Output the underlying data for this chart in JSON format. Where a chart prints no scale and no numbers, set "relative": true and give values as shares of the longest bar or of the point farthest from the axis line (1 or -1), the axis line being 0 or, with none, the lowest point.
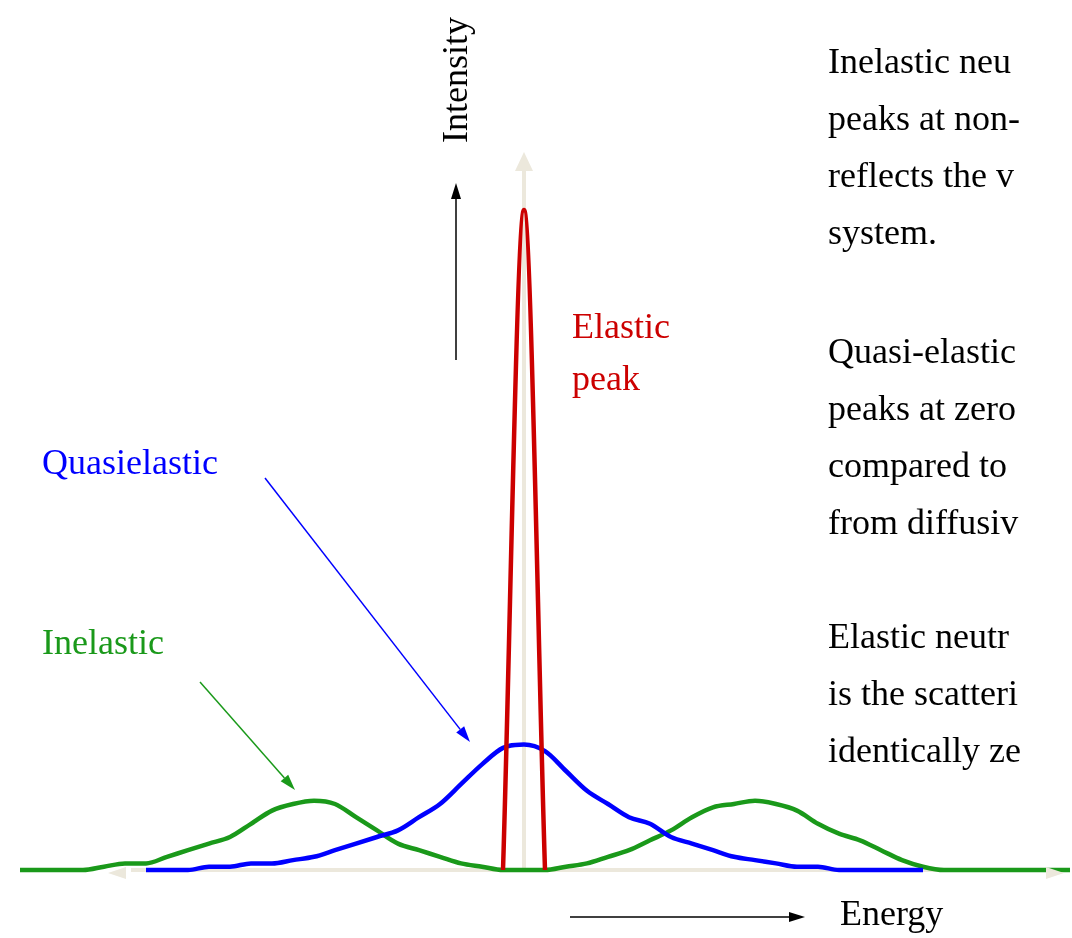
{
  "chart_data": {
    "type": "line",
    "relative": true,
    "xlabel": "Energy",
    "ylabel": "Intensity",
    "categories": [
      null,
      null,
      null,
      null,
      null,
      null,
      null,
      null,
      null,
      null,
      null,
      null,
      null,
      null,
      null,
      null,
      null,
      null,
      null,
      null,
      null,
      null,
      null,
      null,
      null,
      null,
      null,
      null,
      null,
      null,
      null,
      null,
      null,
      null,
      null,
      null,
      null,
      null,
      null,
      null,
      null,
      null,
      null,
      null,
      null,
      null,
      null,
      null,
      null,
      null,
      null
    ],
    "series": [
      {
        "name": "Elastic peak",
        "color": "#cc0000",
        "values": [
          null,
          null,
          null,
          null,
          null,
          null,
          null,
          null,
          null,
          null,
          null,
          null,
          null,
          null,
          null,
          null,
          null,
          null,
          null,
          null,
          null,
          null,
          null,
          0,
          1,
          0,
          null,
          null,
          null,
          null,
          null,
          null,
          null,
          null,
          null,
          null,
          null,
          null,
          null,
          null,
          null,
          null,
          null,
          null,
          null,
          null,
          null,
          null,
          null,
          null,
          null
        ]
      },
      {
        "name": "Quasielastic",
        "color": "#0000ff",
        "values": [
          null,
          null,
          null,
          null,
          null,
          null,
          0,
          0,
          0,
          0.005,
          0.005,
          0.01,
          0.01,
          0.015,
          0.02,
          0.03,
          0.04,
          0.05,
          0.06,
          0.08,
          0.1,
          0.13,
          0.16,
          0.185,
          0.19,
          0.18,
          0.15,
          0.12,
          0.1,
          0.08,
          0.07,
          0.05,
          0.04,
          0.03,
          0.02,
          0.015,
          0.01,
          0.005,
          0.005,
          0,
          0,
          0,
          0,
          0,
          null,
          null,
          null,
          null,
          null,
          null,
          null
        ]
      },
      {
        "name": "Inelastic",
        "color": "#1a991a",
        "values": [
          0,
          0,
          0,
          0,
          0.005,
          0.01,
          0.01,
          0.02,
          0.03,
          0.04,
          0.05,
          0.07,
          0.09,
          0.1,
          0.105,
          0.1,
          0.08,
          0.06,
          0.04,
          0.03,
          0.02,
          0.01,
          0.005,
          0,
          0,
          0,
          0.005,
          0.01,
          0.02,
          0.03,
          0.045,
          0.06,
          0.08,
          0.095,
          0.1,
          0.105,
          0.1,
          0.09,
          0.07,
          0.055,
          0.045,
          0.03,
          0.015,
          0.005,
          0,
          0,
          0,
          0,
          0,
          0,
          0
        ]
      }
    ],
    "annotations": [
      "Inelastic neu\npeaks at non-\nreflects the v\nsystem.",
      "Quasi-elastic\npeaks at zero\ncompared to\nfrom diffusiv",
      "Elastic neutr\nis the scatteri\nidentically ze"
    ],
    "legend": false,
    "grid": false,
    "marker": "none",
    "line_style": "solid",
    "tick_labels": false
  }
}
